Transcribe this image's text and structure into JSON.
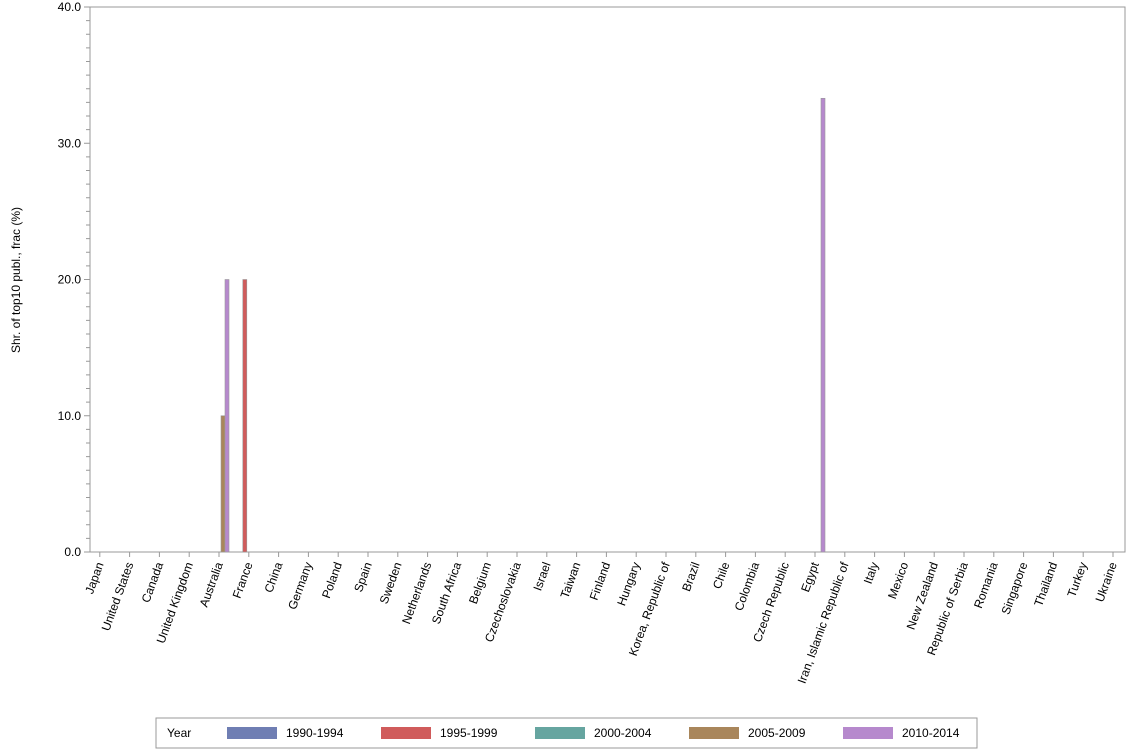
{
  "chart_data": {
    "type": "bar",
    "title": "",
    "xlabel": "",
    "ylabel": "Shr. of top10 publ., frac (%)",
    "ylim": [
      0,
      40
    ],
    "yticks": [
      "0.0",
      "10.0",
      "20.0",
      "30.0",
      "40.0"
    ],
    "categories": [
      "Japan",
      "United States",
      "Canada",
      "United Kingdom",
      "Australia",
      "France",
      "China",
      "Germany",
      "Poland",
      "Spain",
      "Sweden",
      "Netherlands",
      "South Africa",
      "Belgium",
      "Czechoslovakia",
      "Israel",
      "Taiwan",
      "Finland",
      "Hungary",
      "Korea, Republic of",
      "Brazil",
      "Chile",
      "Colombia",
      "Czech Republic",
      "Egypt",
      "Iran, Islamic Republic of",
      "Italy",
      "Mexico",
      "New Zealand",
      "Republic of Serbia",
      "Romania",
      "Singapore",
      "Thailand",
      "Turkey",
      "Ukraine"
    ],
    "legend_title": "Year",
    "legend_position": "bottom",
    "series": [
      {
        "name": "1990-1994",
        "color": "#6f7eb3",
        "values": {}
      },
      {
        "name": "1995-1999",
        "color": "#d05b5b",
        "values": {
          "France": 20
        }
      },
      {
        "name": "2000-2004",
        "color": "#66a5a0",
        "values": {}
      },
      {
        "name": "2005-2009",
        "color": "#a9865b",
        "values": {
          "Australia": 10
        }
      },
      {
        "name": "2010-2014",
        "color": "#b689cd",
        "values": {
          "Australia": 20,
          "Egypt": 33.3
        }
      }
    ]
  }
}
